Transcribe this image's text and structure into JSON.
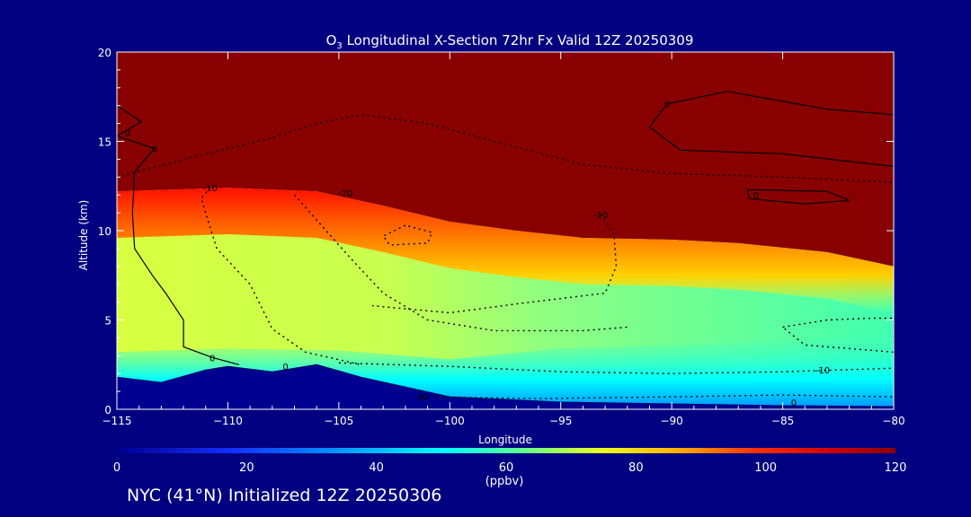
{
  "chart_data": {
    "type": "heatmap",
    "title": "O3 Longitudinal X-Section 72hr  Fx Valid 12Z 20250309",
    "title_parts": {
      "pre": "O",
      "sub": "3",
      "post": " Longitudinal X-Section 72hr  Fx Valid 12Z 20250309"
    },
    "xlabel": "Longitude",
    "ylabel": "Altitude (km)",
    "xlim": [
      -115,
      -80
    ],
    "ylim": [
      0,
      20
    ],
    "xticks": [
      -115,
      -110,
      -105,
      -100,
      -95,
      -90,
      -85,
      -80
    ],
    "xtick_labels": [
      "−115",
      "−110",
      "−105",
      "−100",
      "−95",
      "−90",
      "−85",
      "−80"
    ],
    "yticks": [
      0,
      5,
      10,
      15,
      20
    ],
    "ytick_labels": [
      "0",
      "5",
      "10",
      "15",
      "20"
    ],
    "colorbar": {
      "range": [
        0,
        120
      ],
      "ticks": [
        0,
        20,
        40,
        60,
        80,
        100,
        120
      ],
      "tick_labels": [
        "0",
        "20",
        "40",
        "60",
        "80",
        "100",
        "120"
      ],
      "units": "(ppbv)"
    },
    "field_approx": {
      "description_note": "",
      "tropopause_km": [
        [
          -115,
          12.2
        ],
        [
          -110,
          12.4
        ],
        [
          -106,
          12.2
        ],
        [
          -103,
          11.4
        ],
        [
          -100,
          10.5
        ],
        [
          -97,
          10.0
        ],
        [
          -94,
          9.6
        ],
        [
          -90,
          9.5
        ],
        [
          -87,
          9.3
        ],
        [
          -83,
          8.8
        ],
        [
          -80,
          8.0
        ]
      ],
      "terrain_km": [
        [
          -115,
          1.8
        ],
        [
          -113,
          1.5
        ],
        [
          -111,
          2.2
        ],
        [
          -110,
          2.4
        ],
        [
          -108,
          2.1
        ],
        [
          -106,
          2.5
        ],
        [
          -104,
          1.8
        ],
        [
          -100,
          0.7
        ],
        [
          -95,
          0.4
        ],
        [
          -90,
          0.3
        ],
        [
          -85,
          0.2
        ],
        [
          -80,
          0.15
        ]
      ]
    },
    "contour_labels": [
      {
        "text": "0",
        "lon": -114.5,
        "alt": 15.5
      },
      {
        "text": "0",
        "lon": -113.3,
        "alt": 14.6
      },
      {
        "text": "0",
        "lon": -90.2,
        "alt": 17.1
      },
      {
        "text": "0",
        "lon": -86.2,
        "alt": 12.0
      },
      {
        "text": "-10",
        "lon": -110.8,
        "alt": 12.4
      },
      {
        "text": "-20",
        "lon": -104.7,
        "alt": 12.1
      },
      {
        "text": "-10",
        "lon": -93.2,
        "alt": 10.9
      },
      {
        "text": "0",
        "lon": -110.7,
        "alt": 2.9
      },
      {
        "text": "0",
        "lon": -107.4,
        "alt": 2.4
      },
      {
        "text": "-10",
        "lon": -101.3,
        "alt": 0.7
      },
      {
        "text": "-10",
        "lon": -83.2,
        "alt": 2.2
      },
      {
        "text": "0",
        "lon": -84.5,
        "alt": 0.4
      }
    ]
  },
  "footer": "NYC (41°N) Initialized 12Z 20250306"
}
